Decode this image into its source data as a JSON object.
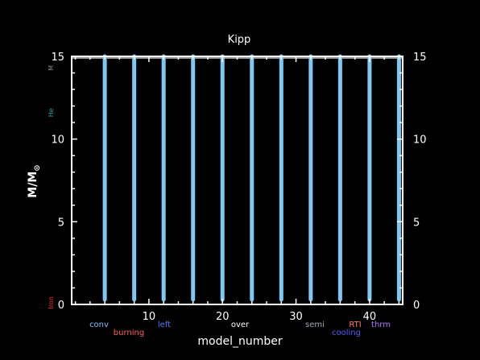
{
  "chart_data": {
    "type": "bar",
    "title": "Kipp",
    "xlabel": "model_number",
    "ylabel": "M/M",
    "ylabel_symbol": "⊙",
    "xlim": [
      -0.5,
      44.5
    ],
    "ylim": [
      0,
      15
    ],
    "x_ticks": [
      10,
      20,
      30,
      40
    ],
    "y_ticks": [
      0,
      5,
      10,
      15
    ],
    "y_ticks_right": [
      0,
      5,
      10,
      15
    ],
    "grid": false,
    "series": [
      {
        "x": [
          4,
          8,
          12,
          16,
          20,
          24,
          28,
          32,
          36,
          40,
          44
        ],
        "y_bottom": [
          0.3,
          0.3,
          0.3,
          0.3,
          0.3,
          0.3,
          0.3,
          0.3,
          0.3,
          0.3,
          0.3
        ],
        "y_top": [
          15,
          15,
          15,
          15,
          15,
          15,
          15,
          15,
          15,
          15,
          15
        ]
      }
    ],
    "top_band": {
      "y": 15
    },
    "left_labels": [
      {
        "text": "Iron",
        "y": 0.1,
        "color": "#ff2a2a"
      },
      {
        "text": "He",
        "y": 11.6,
        "color": "#2aa0a0"
      },
      {
        "text": "M",
        "y": 14.3,
        "color": "#8a8a8a"
      }
    ],
    "legend": [
      {
        "text": "conv",
        "color": "#7ec0ff",
        "row": 1
      },
      {
        "text": "burning",
        "color": "#ff5a5a",
        "row": 2
      },
      {
        "text": "left",
        "color": "#4a7dff",
        "row": 1
      },
      {
        "text": "over",
        "color": "#ffffff",
        "row": 1
      },
      {
        "text": "semi",
        "color": "#9aaab8",
        "row": 1
      },
      {
        "text": "cooling",
        "color": "#5a5aff",
        "row": 2
      },
      {
        "text": "RTI",
        "color": "#ff7a5a",
        "row": 1
      },
      {
        "text": "thrm",
        "color": "#b07aff",
        "row": 1
      }
    ],
    "colors": {
      "background": "#000000",
      "axes": "#ffffff",
      "bars": "#7ec8f4",
      "band": "#9a9a9a"
    }
  }
}
